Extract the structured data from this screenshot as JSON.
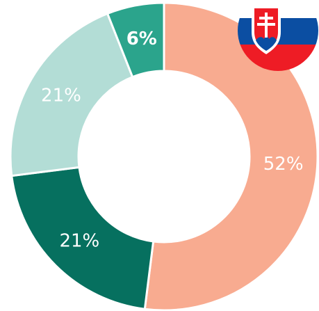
{
  "chart_data": {
    "type": "pie",
    "values": [
      52,
      21,
      21,
      6
    ],
    "value_labels": [
      "52%",
      "21%",
      "21%",
      "6%"
    ],
    "colors": [
      "#f8ab90",
      "#06705f",
      "#b3ddd6",
      "#2ba48c"
    ],
    "donut": true
  }
}
